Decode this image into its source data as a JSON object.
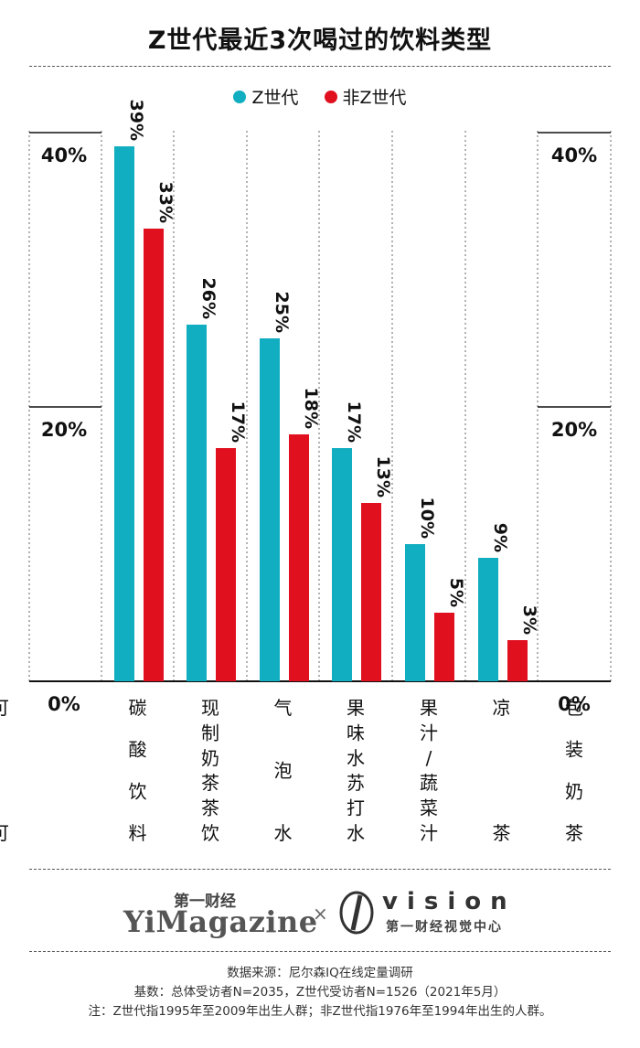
{
  "title": "Z世代最近3次喝过的饮料类型",
  "colors": {
    "z": "#10aec0",
    "nonz": "#e0101f",
    "axis": "#111111"
  },
  "chart_data": {
    "type": "bar",
    "title": "Z世代最近3次喝过的饮料类型",
    "categories": [
      "碳酸饮料",
      "现制奶茶茶饮",
      "气泡水",
      "果味水苏打水",
      "果汁/蔬菜汁",
      "凉茶",
      "包装奶茶",
      "可可"
    ],
    "category_labels": [
      [
        "碳",
        "酸",
        "饮",
        "料"
      ],
      [
        "现制奶茶茶饮"
      ],
      [
        "气",
        "泡",
        "水"
      ],
      [
        "果味水苏打水"
      ],
      [
        "果汁/蔬菜汁"
      ],
      [
        "凉",
        "茶"
      ],
      [
        "包",
        "装",
        "奶",
        "茶"
      ],
      [
        "可",
        "可"
      ]
    ],
    "series": [
      {
        "name": "Z世代",
        "values": [
          39,
          26,
          25,
          17,
          10,
          9,
          null,
          null
        ]
      },
      {
        "name": "非Z世代",
        "values": [
          33,
          17,
          18,
          13,
          5,
          3,
          null,
          null
        ]
      }
    ],
    "data_labels": [
      [
        "39%",
        "26%",
        "25%",
        "17%",
        "10%",
        "9%"
      ],
      [
        "33%",
        "17%",
        "18%",
        "13%",
        "5%",
        "3%"
      ]
    ],
    "y_ticks": [
      "40%",
      "20%",
      "0%"
    ],
    "ylim": [
      0,
      40
    ],
    "legend_position": "top",
    "grid": false
  },
  "brand": {
    "yimagazine_cn": "第一财经",
    "yimagazine_en": "YiMagazine",
    "cross": "×",
    "vision_word": "vision",
    "vision_sub": "第一财经视觉中心"
  },
  "notes": {
    "source": "数据来源：尼尔森IQ在线定量调研",
    "base": "基数：总体受访者N=2035，Z世代受访者N=1526（2021年5月）",
    "note": "注：Z世代指1995年至2009年出生人群；非Z世代指1976年至1994年出生的人群。"
  }
}
